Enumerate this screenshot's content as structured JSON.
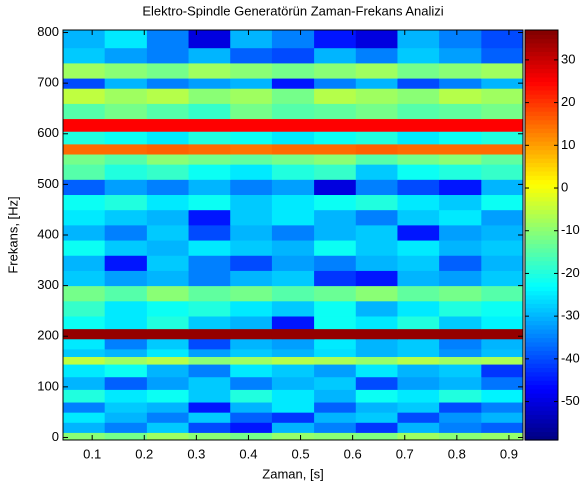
{
  "chart_data": {
    "type": "heatmap",
    "title": "Elektro-Spindle Generatörün Zaman-Frekans Analizi",
    "x_label": "Zaman, [s]",
    "y_label": "Frekans, [Hz]",
    "xlim": [
      0.044,
      0.927
    ],
    "ylim": [
      -5,
      805
    ],
    "xticks": [
      0.1,
      0.2,
      0.3,
      0.4,
      0.5,
      0.6,
      0.7,
      0.8,
      0.9
    ],
    "yticks": [
      0,
      100,
      200,
      300,
      400,
      500,
      600,
      700,
      800
    ],
    "x_bins": [
      0.044,
      0.124,
      0.205,
      0.285,
      0.365,
      0.445,
      0.526,
      0.606,
      0.686,
      0.766,
      0.847,
      0.927
    ],
    "y_bins": [
      -5,
      10,
      30,
      50,
      70,
      95,
      120,
      145,
      160,
      175,
      195,
      215,
      240,
      270,
      300,
      330,
      360,
      390,
      420,
      450,
      480,
      510,
      540,
      560,
      580,
      605,
      630,
      660,
      690,
      710,
      740,
      770,
      805
    ],
    "z": [
      [
        -10,
        -12,
        -8,
        -10,
        -12,
        -9,
        -10,
        -11,
        -8,
        -10,
        -9
      ],
      [
        -30,
        -35,
        -28,
        -40,
        -45,
        -30,
        -35,
        -42,
        -30,
        -35,
        -38
      ],
      [
        -25,
        -30,
        -35,
        -28,
        -38,
        -42,
        -30,
        -28,
        -40,
        -33,
        -30
      ],
      [
        -35,
        -28,
        -30,
        -45,
        -30,
        -25,
        -38,
        -30,
        -28,
        -40,
        -35
      ],
      [
        -20,
        -25,
        -22,
        -28,
        -20,
        -25,
        -30,
        -22,
        -25,
        -20,
        -24
      ],
      [
        -30,
        -38,
        -32,
        -28,
        -35,
        -30,
        -28,
        -40,
        -32,
        -30,
        -36
      ],
      [
        -25,
        -22,
        -30,
        -35,
        -25,
        -28,
        -32,
        -25,
        -30,
        -28,
        -42
      ],
      [
        -5,
        -8,
        -6,
        -10,
        -8,
        -6,
        -7,
        -9,
        -6,
        -8,
        -7
      ],
      [
        -28,
        -30,
        -25,
        -32,
        -28,
        -30,
        -26,
        -30,
        -28,
        -33,
        -29
      ],
      [
        -25,
        -35,
        -28,
        -40,
        -30,
        -32,
        -25,
        -30,
        -28,
        -35,
        -30
      ],
      [
        35,
        35,
        35,
        35,
        35,
        35,
        35,
        35,
        35,
        35,
        35
      ],
      [
        -22,
        -25,
        -20,
        -28,
        -30,
        -45,
        -22,
        -25,
        -20,
        -28,
        -24
      ],
      [
        -18,
        -25,
        -22,
        -20,
        -25,
        -28,
        -22,
        -30,
        -25,
        -20,
        -22
      ],
      [
        -12,
        -15,
        -10,
        -14,
        -12,
        -15,
        -13,
        -10,
        -14,
        -12,
        -15
      ],
      [
        -28,
        -32,
        -30,
        -35,
        -30,
        -28,
        -42,
        -45,
        -30,
        -32,
        -28
      ],
      [
        -30,
        -45,
        -28,
        -35,
        -40,
        -32,
        -35,
        -30,
        -28,
        -38,
        -30
      ],
      [
        -22,
        -28,
        -30,
        -25,
        -28,
        -30,
        -22,
        -28,
        -25,
        -30,
        -28
      ],
      [
        -30,
        -35,
        -28,
        -40,
        -30,
        -35,
        -30,
        -28,
        -45,
        -32,
        -30
      ],
      [
        -25,
        -28,
        -30,
        -45,
        -28,
        -25,
        -30,
        -35,
        -28,
        -25,
        -32
      ],
      [
        -22,
        -20,
        -25,
        -22,
        -28,
        -25,
        -22,
        -20,
        -25,
        -28,
        -22
      ],
      [
        -38,
        -32,
        -35,
        -30,
        -35,
        -32,
        -50,
        -35,
        -40,
        -45,
        -30
      ],
      [
        -15,
        -20,
        -18,
        -22,
        -25,
        -20,
        -18,
        -28,
        -22,
        -20,
        -18
      ],
      [
        -12,
        -15,
        -10,
        -12,
        -14,
        -12,
        -10,
        -15,
        -12,
        -10,
        -14
      ],
      [
        15,
        15,
        16,
        15,
        14,
        15,
        15,
        16,
        15,
        15,
        15
      ],
      [
        -20,
        -22,
        -25,
        -20,
        -22,
        -25,
        -22,
        -20,
        -25,
        -22,
        -20
      ],
      [
        25,
        25,
        25,
        25,
        25,
        25,
        25,
        25,
        25,
        25,
        25
      ],
      [
        -15,
        -12,
        -15,
        -18,
        -12,
        -15,
        -14,
        -12,
        -15,
        -14,
        -12
      ],
      [
        -5,
        -8,
        -6,
        -10,
        -8,
        -12,
        -6,
        -8,
        -10,
        -6,
        -8
      ],
      [
        -40,
        -30,
        -35,
        -32,
        -30,
        -45,
        -35,
        -30,
        -40,
        -35,
        -30
      ],
      [
        -8,
        -10,
        -12,
        -8,
        -10,
        -12,
        -10,
        -8,
        -12,
        -10,
        -8
      ],
      [
        -28,
        -32,
        -35,
        -30,
        -38,
        -40,
        -30,
        -35,
        -28,
        -32,
        -38
      ],
      [
        -30,
        -25,
        -35,
        -50,
        -30,
        -35,
        -45,
        -50,
        -30,
        -35,
        -40
      ]
    ],
    "clim": [
      -59,
      37
    ],
    "cticks": [
      -50,
      -40,
      -30,
      -20,
      -10,
      0,
      10,
      20,
      30
    ],
    "colormap": "jet"
  }
}
